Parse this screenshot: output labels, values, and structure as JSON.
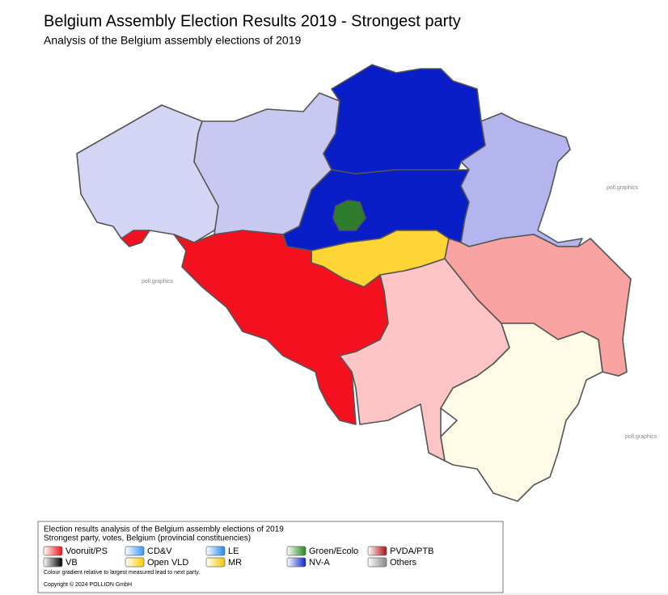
{
  "header": {
    "title": "Belgium Assembly Election Results 2019 - Strongest party",
    "subtitle": "Analysis of the Belgium assembly elections of 2019"
  },
  "watermarks": [
    "poll.graphics",
    "poll.graphics",
    "poll.graphics"
  ],
  "legend": {
    "title": "Election results analysis of the Belgium assembly elections of 2019",
    "subtitle": "Strongest party, votes, Belgium (provincial constituencies)",
    "entries": [
      {
        "label": "Vooruit/PS",
        "color": "#ee1111"
      },
      {
        "label": "CD&V",
        "color": "#3399ff"
      },
      {
        "label": "LE",
        "color": "#2288ee"
      },
      {
        "label": "Groen/Ecolo",
        "color": "#228822"
      },
      {
        "label": "PVDA/PTB",
        "color": "#aa1111"
      },
      {
        "label": "VB",
        "color": "#000000"
      },
      {
        "label": "Open VLD",
        "color": "#ffcc00"
      },
      {
        "label": "MR",
        "color": "#f5c400"
      },
      {
        "label": "NV-A",
        "color": "#1122cc"
      },
      {
        "label": "Others",
        "color": "#888888"
      }
    ],
    "note": "Colour gradient relative to largest measured lead to next party.",
    "copyright": "Copyright © 2024 POLLION GmbH"
  }
}
